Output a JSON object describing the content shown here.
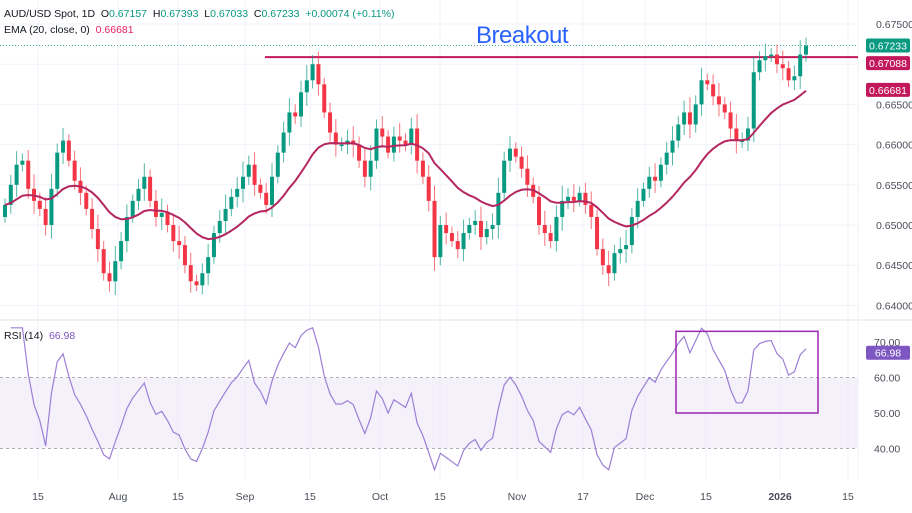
{
  "header": {
    "symbol": "AUD/USD Spot, 1D",
    "open_label": "O",
    "open": "0.67157",
    "high_label": "H",
    "high": "0.67393",
    "low_label": "L",
    "low": "0.67033",
    "close_label": "C",
    "close": "0.67233",
    "change": "+0.00074 (+0.11%)",
    "ema_label": "EMA (20, close, 0)",
    "ema_value": "0.66681"
  },
  "rsi_legend": {
    "label": "RSI (14)",
    "value": "66.98"
  },
  "annotation": {
    "text": "Breakout",
    "level": 0.67088,
    "color": "#c2185b",
    "text_color": "#2962ff"
  },
  "price_tags": [
    {
      "value": "0.67233",
      "color": "#089981"
    },
    {
      "value": "0.67088",
      "color": "#c2185b"
    },
    {
      "value": "0.66681",
      "color": "#c2185b"
    }
  ],
  "colors": {
    "up": "#089981",
    "down": "#f23645",
    "ema": "#b4265f",
    "rsi": "#9c7fd6",
    "rsi_band": "#ede7f6"
  },
  "chart_data": [
    {
      "type": "candlestick",
      "title": "AUD/USD Spot, 1D",
      "ylim": [
        0.6395,
        0.677
      ],
      "y_ticks": [
        "0.67500",
        "0.66500",
        "0.66000",
        "0.65500",
        "0.65000",
        "0.64500",
        "0.64000"
      ],
      "x_ticks": [
        "15",
        "Aug",
        "15",
        "Sep",
        "15",
        "Oct",
        "15",
        "Nov",
        "17",
        "Dec",
        "15",
        "2026",
        "15"
      ],
      "grid": true,
      "overlay": "EMA 20",
      "closes": [
        0.6525,
        0.655,
        0.6575,
        0.658,
        0.6545,
        0.653,
        0.652,
        0.65,
        0.6545,
        0.659,
        0.6605,
        0.658,
        0.6555,
        0.654,
        0.652,
        0.6495,
        0.647,
        0.644,
        0.643,
        0.6455,
        0.648,
        0.651,
        0.653,
        0.6545,
        0.656,
        0.653,
        0.651,
        0.6515,
        0.65,
        0.648,
        0.6475,
        0.645,
        0.643,
        0.6425,
        0.644,
        0.646,
        0.649,
        0.6505,
        0.652,
        0.6535,
        0.6545,
        0.656,
        0.6575,
        0.655,
        0.654,
        0.6525,
        0.656,
        0.659,
        0.6615,
        0.664,
        0.6635,
        0.6665,
        0.668,
        0.67,
        0.6675,
        0.664,
        0.6615,
        0.66,
        0.66,
        0.6605,
        0.66,
        0.658,
        0.656,
        0.658,
        0.662,
        0.661,
        0.659,
        0.661,
        0.6605,
        0.66,
        0.662,
        0.658,
        0.656,
        0.653,
        0.646,
        0.65,
        0.649,
        0.648,
        0.647,
        0.649,
        0.65,
        0.6505,
        0.6485,
        0.6495,
        0.65,
        0.654,
        0.658,
        0.6595,
        0.6585,
        0.657,
        0.655,
        0.6535,
        0.65,
        0.649,
        0.648,
        0.651,
        0.653,
        0.6535,
        0.653,
        0.654,
        0.6525,
        0.651,
        0.647,
        0.645,
        0.644,
        0.6465,
        0.647,
        0.6475,
        0.651,
        0.653,
        0.6545,
        0.656,
        0.6555,
        0.6575,
        0.659,
        0.6605,
        0.6625,
        0.664,
        0.6625,
        0.665,
        0.668,
        0.6675,
        0.666,
        0.665,
        0.664,
        0.662,
        0.6605,
        0.6605,
        0.662,
        0.669,
        0.6705,
        0.671,
        0.6712,
        0.67,
        0.6695,
        0.668,
        0.6685,
        0.6712,
        0.6723
      ]
    },
    {
      "type": "line",
      "title": "RSI (14)",
      "ylim": [
        33,
        75
      ],
      "y_ticks": [
        "70.00",
        "60.00",
        "50.00",
        "40.00"
      ],
      "levels": [
        60,
        40
      ],
      "highlight_box": [
        50,
        73
      ]
    }
  ]
}
